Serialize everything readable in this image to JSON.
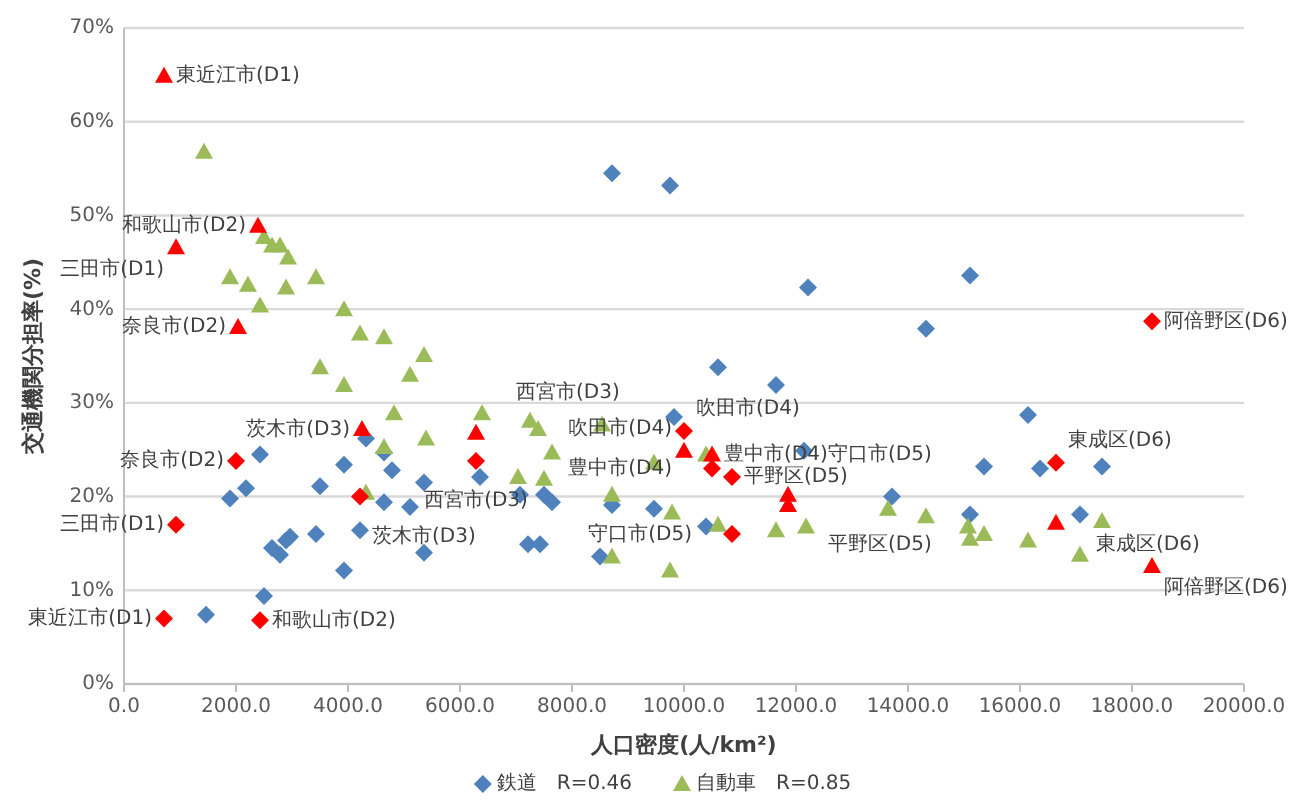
{
  "chart_data": {
    "type": "scatter",
    "xlabel": "人口密度(人/km²)",
    "ylabel": "交通機関分担率(%)",
    "xlim": [
      0,
      20000
    ],
    "xticks": [
      {
        "value": 0,
        "label": "0.0"
      },
      {
        "value": 2000,
        "label": "2000.0"
      },
      {
        "value": 4000,
        "label": "4000.0"
      },
      {
        "value": 6000,
        "label": "6000.0"
      },
      {
        "value": 8000,
        "label": "8000.0"
      },
      {
        "value": 10000,
        "label": "10000.0"
      },
      {
        "value": 12000,
        "label": "12000.0"
      },
      {
        "value": 14000,
        "label": "14000.0"
      },
      {
        "value": 16000,
        "label": "16000.0"
      },
      {
        "value": 18000,
        "label": "18000.0"
      },
      {
        "value": 20000,
        "label": "20000.0"
      }
    ],
    "ylim": [
      0,
      70
    ],
    "yticks": [
      {
        "value": 0,
        "label": "0%"
      },
      {
        "value": 10,
        "label": "10%"
      },
      {
        "value": 20,
        "label": "20%"
      },
      {
        "value": 30,
        "label": "30%"
      },
      {
        "value": 40,
        "label": "40%"
      },
      {
        "value": 50,
        "label": "50%"
      },
      {
        "value": 60,
        "label": "60%"
      },
      {
        "value": 70,
        "label": "70%"
      }
    ],
    "grid": "y",
    "legend": "bottom",
    "series": [
      {
        "name": "鉄道　R=0.46",
        "color": "#4f81bd",
        "marker": "diamond",
        "x": [
          2429,
          2179,
          1893,
          1464,
          2500,
          2643,
          2786,
          2893,
          2964,
          3429,
          3500,
          3929,
          3929,
          4321,
          4214,
          4643,
          4786,
          4643,
          5107,
          5357,
          5357,
          6357,
          7071,
          7214,
          7429,
          7500,
          7643,
          8500,
          8714,
          9464,
          9821,
          10393,
          10607,
          11643,
          12143,
          13714,
          15107,
          15357,
          16143,
          16357,
          17071,
          17464,
          8714,
          9750,
          12214,
          14321,
          15107
        ],
        "values": [
          24.5,
          20.9,
          19.8,
          7.4,
          9.4,
          14.5,
          13.8,
          15.3,
          15.7,
          16.0,
          21.1,
          23.4,
          12.1,
          26.2,
          16.4,
          19.4,
          22.8,
          24.7,
          18.9,
          21.5,
          14.0,
          22.1,
          20.2,
          14.9,
          14.9,
          20.2,
          19.4,
          13.6,
          19.1,
          18.7,
          28.5,
          16.8,
          33.8,
          31.9,
          24.9,
          20.0,
          18.1,
          23.2,
          28.7,
          23.0,
          18.1,
          23.2,
          54.5,
          53.2,
          42.3,
          37.9,
          43.6
        ]
      },
      {
        "name": "自動車　R=0.85",
        "color": "#9bbb59",
        "marker": "triangle",
        "x": [
          1429,
          2500,
          2643,
          2786,
          2929,
          1893,
          2214,
          2893,
          3429,
          2429,
          3929,
          4214,
          4643,
          5357,
          3500,
          3929,
          5107,
          4821,
          6393,
          7250,
          7393,
          7643,
          8536,
          4643,
          5393,
          7036,
          7500,
          4321,
          8714,
          8714,
          9786,
          9750,
          9464,
          10393,
          10607,
          11643,
          12179,
          13643,
          14321,
          15071,
          15107,
          15357,
          16143,
          17464,
          17071
        ],
        "values": [
          56.8,
          47.7,
          46.8,
          46.8,
          45.5,
          43.4,
          42.6,
          42.3,
          43.4,
          40.4,
          40.0,
          37.4,
          37.0,
          35.1,
          33.8,
          31.9,
          33.0,
          28.9,
          28.9,
          28.1,
          27.2,
          24.7,
          27.7,
          25.3,
          26.2,
          22.1,
          21.9,
          20.4,
          20.2,
          13.6,
          18.3,
          12.1,
          23.6,
          24.5,
          17.0,
          16.4,
          16.8,
          18.7,
          17.9,
          16.8,
          15.5,
          16.0,
          15.3,
          17.4,
          13.8
        ]
      },
      {
        "color": "#ff0000",
        "marker": "diamond",
        "x": [
          714,
          929,
          2429,
          2000,
          4214,
          6286,
          10000,
          10500,
          10857,
          10857,
          16643,
          18357
        ],
        "values": [
          7.0,
          17.0,
          6.8,
          23.8,
          20.0,
          23.8,
          27.0,
          23.0,
          22.1,
          16.0,
          23.6,
          38.7
        ]
      },
      {
        "color": "#ff0000",
        "marker": "triangle",
        "x": [
          714,
          929,
          2393,
          2036,
          4250,
          6286,
          10000,
          10500,
          11857,
          11857,
          16643,
          18357
        ],
        "values": [
          64.9,
          46.6,
          48.9,
          38.1,
          27.2,
          26.8,
          24.9,
          24.5,
          20.2,
          19.1,
          17.2,
          12.6
        ]
      }
    ],
    "annotations": [
      {
        "text": "東近江市(D1)",
        "x": 714,
        "y": 64.9
      },
      {
        "text": "和歌山市(D2)",
        "x": 2393,
        "y": 48.9
      },
      {
        "text": "三田市(D1)",
        "x": 929,
        "y": 46.6
      },
      {
        "text": "奈良市(D2)",
        "x": 2036,
        "y": 38.1
      },
      {
        "text": "茨木市(D3)",
        "x": 4250,
        "y": 27.2
      },
      {
        "text": "西宮市(D3)",
        "x": 6286,
        "y": 26.8
      },
      {
        "text": "吹田市(D4)",
        "x": 10000,
        "y": 27.0
      },
      {
        "text": "豊中市(D4)",
        "x": 10500,
        "y": 24.5
      },
      {
        "text": "豊中市(D4)",
        "x": 10500,
        "y": 23.0
      },
      {
        "text": "東成区(D6)",
        "x": 16643,
        "y": 23.6
      },
      {
        "text": "阿倍野区(D6)",
        "x": 18357,
        "y": 38.7
      },
      {
        "text": "奈良市(D2)",
        "x": 2000,
        "y": 23.8
      },
      {
        "text": "西宮市(D3)",
        "x": 6286,
        "y": 23.8
      },
      {
        "text": "吹田市(D4)",
        "x": 10000,
        "y": 24.9
      },
      {
        "text": "平野区(D5)",
        "x": 10857,
        "y": 22.1
      },
      {
        "text": "守口市(D5)",
        "x": 11857,
        "y": 20.2
      },
      {
        "text": "茨木市(D3)",
        "x": 4214,
        "y": 20.0
      },
      {
        "text": "三田市(D1)",
        "x": 929,
        "y": 17.0
      },
      {
        "text": "守口市(D5)",
        "x": 10857,
        "y": 16.0
      },
      {
        "text": "東成区(D6)",
        "x": 16643,
        "y": 17.2
      },
      {
        "text": "平野区(D5)",
        "x": 11857,
        "y": 19.1
      },
      {
        "text": "東近江市(D1)",
        "x": 714,
        "y": 7.0
      },
      {
        "text": "和歌山市(D2)",
        "x": 2429,
        "y": 6.8
      },
      {
        "text": "阿倍野区(D6)",
        "x": 18357,
        "y": 12.6
      }
    ]
  }
}
